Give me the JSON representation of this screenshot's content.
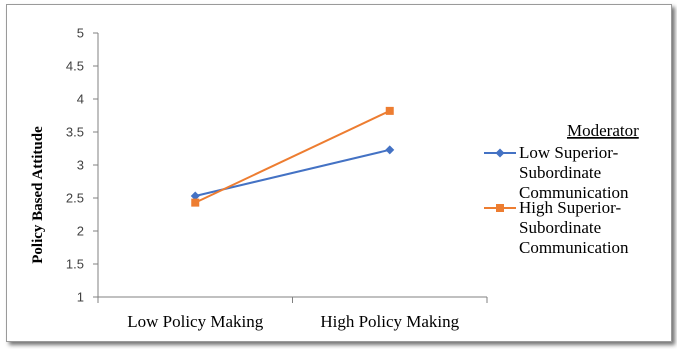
{
  "chart_data": {
    "type": "line",
    "title": "",
    "xlabel": "",
    "ylabel": "Policy Based Attitude",
    "categories": [
      "Low Policy Making",
      "High Policy Making"
    ],
    "ylim": [
      1,
      5
    ],
    "yticks": [
      "1",
      "1.5",
      "2",
      "2.5",
      "3",
      "3.5",
      "4",
      "4.5",
      "5"
    ],
    "grid": false,
    "legend_position": "right",
    "legend_title": "Moderator",
    "series": [
      {
        "name": "Low Superior-Subordinate Communication",
        "name_lines": [
          "Low Superior-",
          "Subordinate",
          "Communication"
        ],
        "values": [
          2.53,
          3.23
        ],
        "color": "#4472C4",
        "marker": "diamond"
      },
      {
        "name": "High Superior-Subordinate Communication",
        "name_lines": [
          "High Superior-",
          "Subordinate",
          "Communication"
        ],
        "values": [
          2.43,
          3.82
        ],
        "color": "#ED7D31",
        "marker": "square"
      }
    ]
  }
}
